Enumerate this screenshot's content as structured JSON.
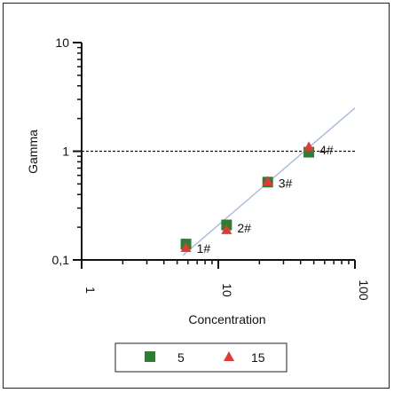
{
  "chart_data": {
    "type": "scatter",
    "xlabel": "Concentration",
    "ylabel": "Gamma",
    "xscale": "log",
    "yscale": "log",
    "xlim": [
      1,
      100
    ],
    "ylim": [
      0.1,
      10
    ],
    "x_ticks": [
      {
        "value": 1,
        "label": "1"
      },
      {
        "value": 10,
        "label": "10"
      },
      {
        "value": 100,
        "label": "100"
      }
    ],
    "y_ticks": [
      {
        "value": 0.1,
        "label": "0,1"
      },
      {
        "value": 1,
        "label": "1"
      },
      {
        "value": 10,
        "label": "10"
      }
    ],
    "reference_line": {
      "y": 1,
      "style": "dashed"
    },
    "fit_line": {
      "x": [
        5.5,
        100
      ],
      "y": [
        0.11,
        2.5
      ],
      "color": "#a9bde0"
    },
    "series": [
      {
        "name": "5",
        "marker": "square",
        "color": "#2e7d32",
        "x": [
          5.8,
          11.5,
          23,
          46
        ],
        "y": [
          0.14,
          0.21,
          0.52,
          0.98
        ]
      },
      {
        "name": "15",
        "marker": "triangle",
        "color": "#e53935",
        "x": [
          5.8,
          11.5,
          23,
          46
        ],
        "y": [
          0.13,
          0.19,
          0.53,
          1.1
        ]
      }
    ],
    "point_labels": [
      {
        "text": "1#",
        "x": 5.8,
        "y": 0.13
      },
      {
        "text": "2#",
        "x": 11.5,
        "y": 0.2
      },
      {
        "text": "3#",
        "x": 23,
        "y": 0.52
      },
      {
        "text": "4#",
        "x": 46,
        "y": 1.05
      }
    ],
    "legend_position": "bottom"
  }
}
